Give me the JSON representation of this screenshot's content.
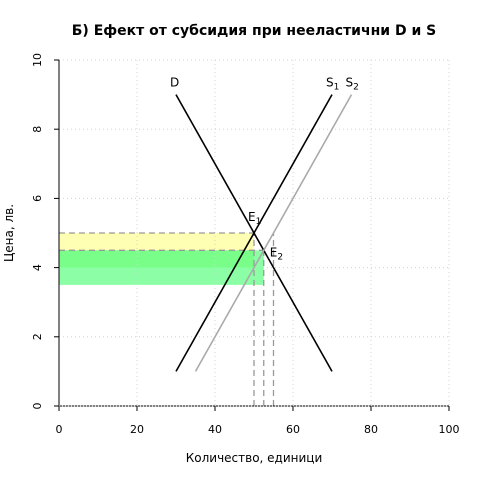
{
  "chart_data": {
    "type": "line",
    "title": "Б) Ефект от субсидия при нееластични D и S",
    "xlabel": "Количество, единици",
    "ylabel": "Цена, лв.",
    "xlim": [
      0,
      100
    ],
    "ylim": [
      0,
      10
    ],
    "x_ticks": [
      0,
      20,
      40,
      60,
      80,
      100
    ],
    "y_ticks": [
      0,
      2,
      4,
      6,
      8,
      10
    ],
    "x_tick_labels": [
      "0",
      "20",
      "40",
      "60",
      "80",
      "100"
    ],
    "y_tick_labels": [
      "0",
      "2",
      "4",
      "6",
      "8",
      "10"
    ],
    "grid": true,
    "series": [
      {
        "name": "D",
        "color": "#000000",
        "points": [
          [
            30,
            9
          ],
          [
            70,
            1
          ]
        ]
      },
      {
        "name": "S1",
        "color": "#000000",
        "points": [
          [
            30,
            1
          ],
          [
            70,
            9
          ]
        ]
      },
      {
        "name": "S2",
        "color": "#aaaaaa",
        "points": [
          [
            35,
            1
          ],
          [
            75,
            9
          ]
        ]
      }
    ],
    "curve_labels": [
      {
        "text": "D",
        "sub": "",
        "at": [
          30,
          9
        ]
      },
      {
        "text": "S",
        "sub": "1",
        "at": [
          70,
          9
        ]
      },
      {
        "text": "S",
        "sub": "2",
        "at": [
          75,
          9
        ]
      }
    ],
    "equilibria": [
      {
        "text": "E",
        "sub": "1",
        "x": 50,
        "y": 5
      },
      {
        "text": "E",
        "sub": "2",
        "x": 52.5,
        "y": 4.5
      }
    ],
    "shaded_regions": [
      {
        "x": [
          0,
          50
        ],
        "y": [
          4.5,
          5
        ],
        "color": "#ffff99"
      },
      {
        "x": [
          0,
          50
        ],
        "y": [
          4,
          4.5
        ],
        "color": "#99ff66"
      },
      {
        "x": [
          0,
          52.5
        ],
        "y": [
          3.5,
          4.5
        ],
        "color": "#66ff88"
      }
    ],
    "guide_lines": {
      "horizontal": [
        {
          "y": 5,
          "x": [
            0,
            50
          ],
          "color": "#999999"
        },
        {
          "y": 4.5,
          "x": [
            0,
            52.5
          ],
          "color": "#999999"
        }
      ],
      "vertical": [
        {
          "x": 50,
          "y": [
            0,
            5
          ],
          "color": "#999999"
        },
        {
          "x": 52.5,
          "y": [
            0,
            4.5
          ],
          "color": "#999999"
        },
        {
          "x": 55,
          "y": [
            0,
            5
          ],
          "color": "#999999"
        }
      ]
    }
  }
}
